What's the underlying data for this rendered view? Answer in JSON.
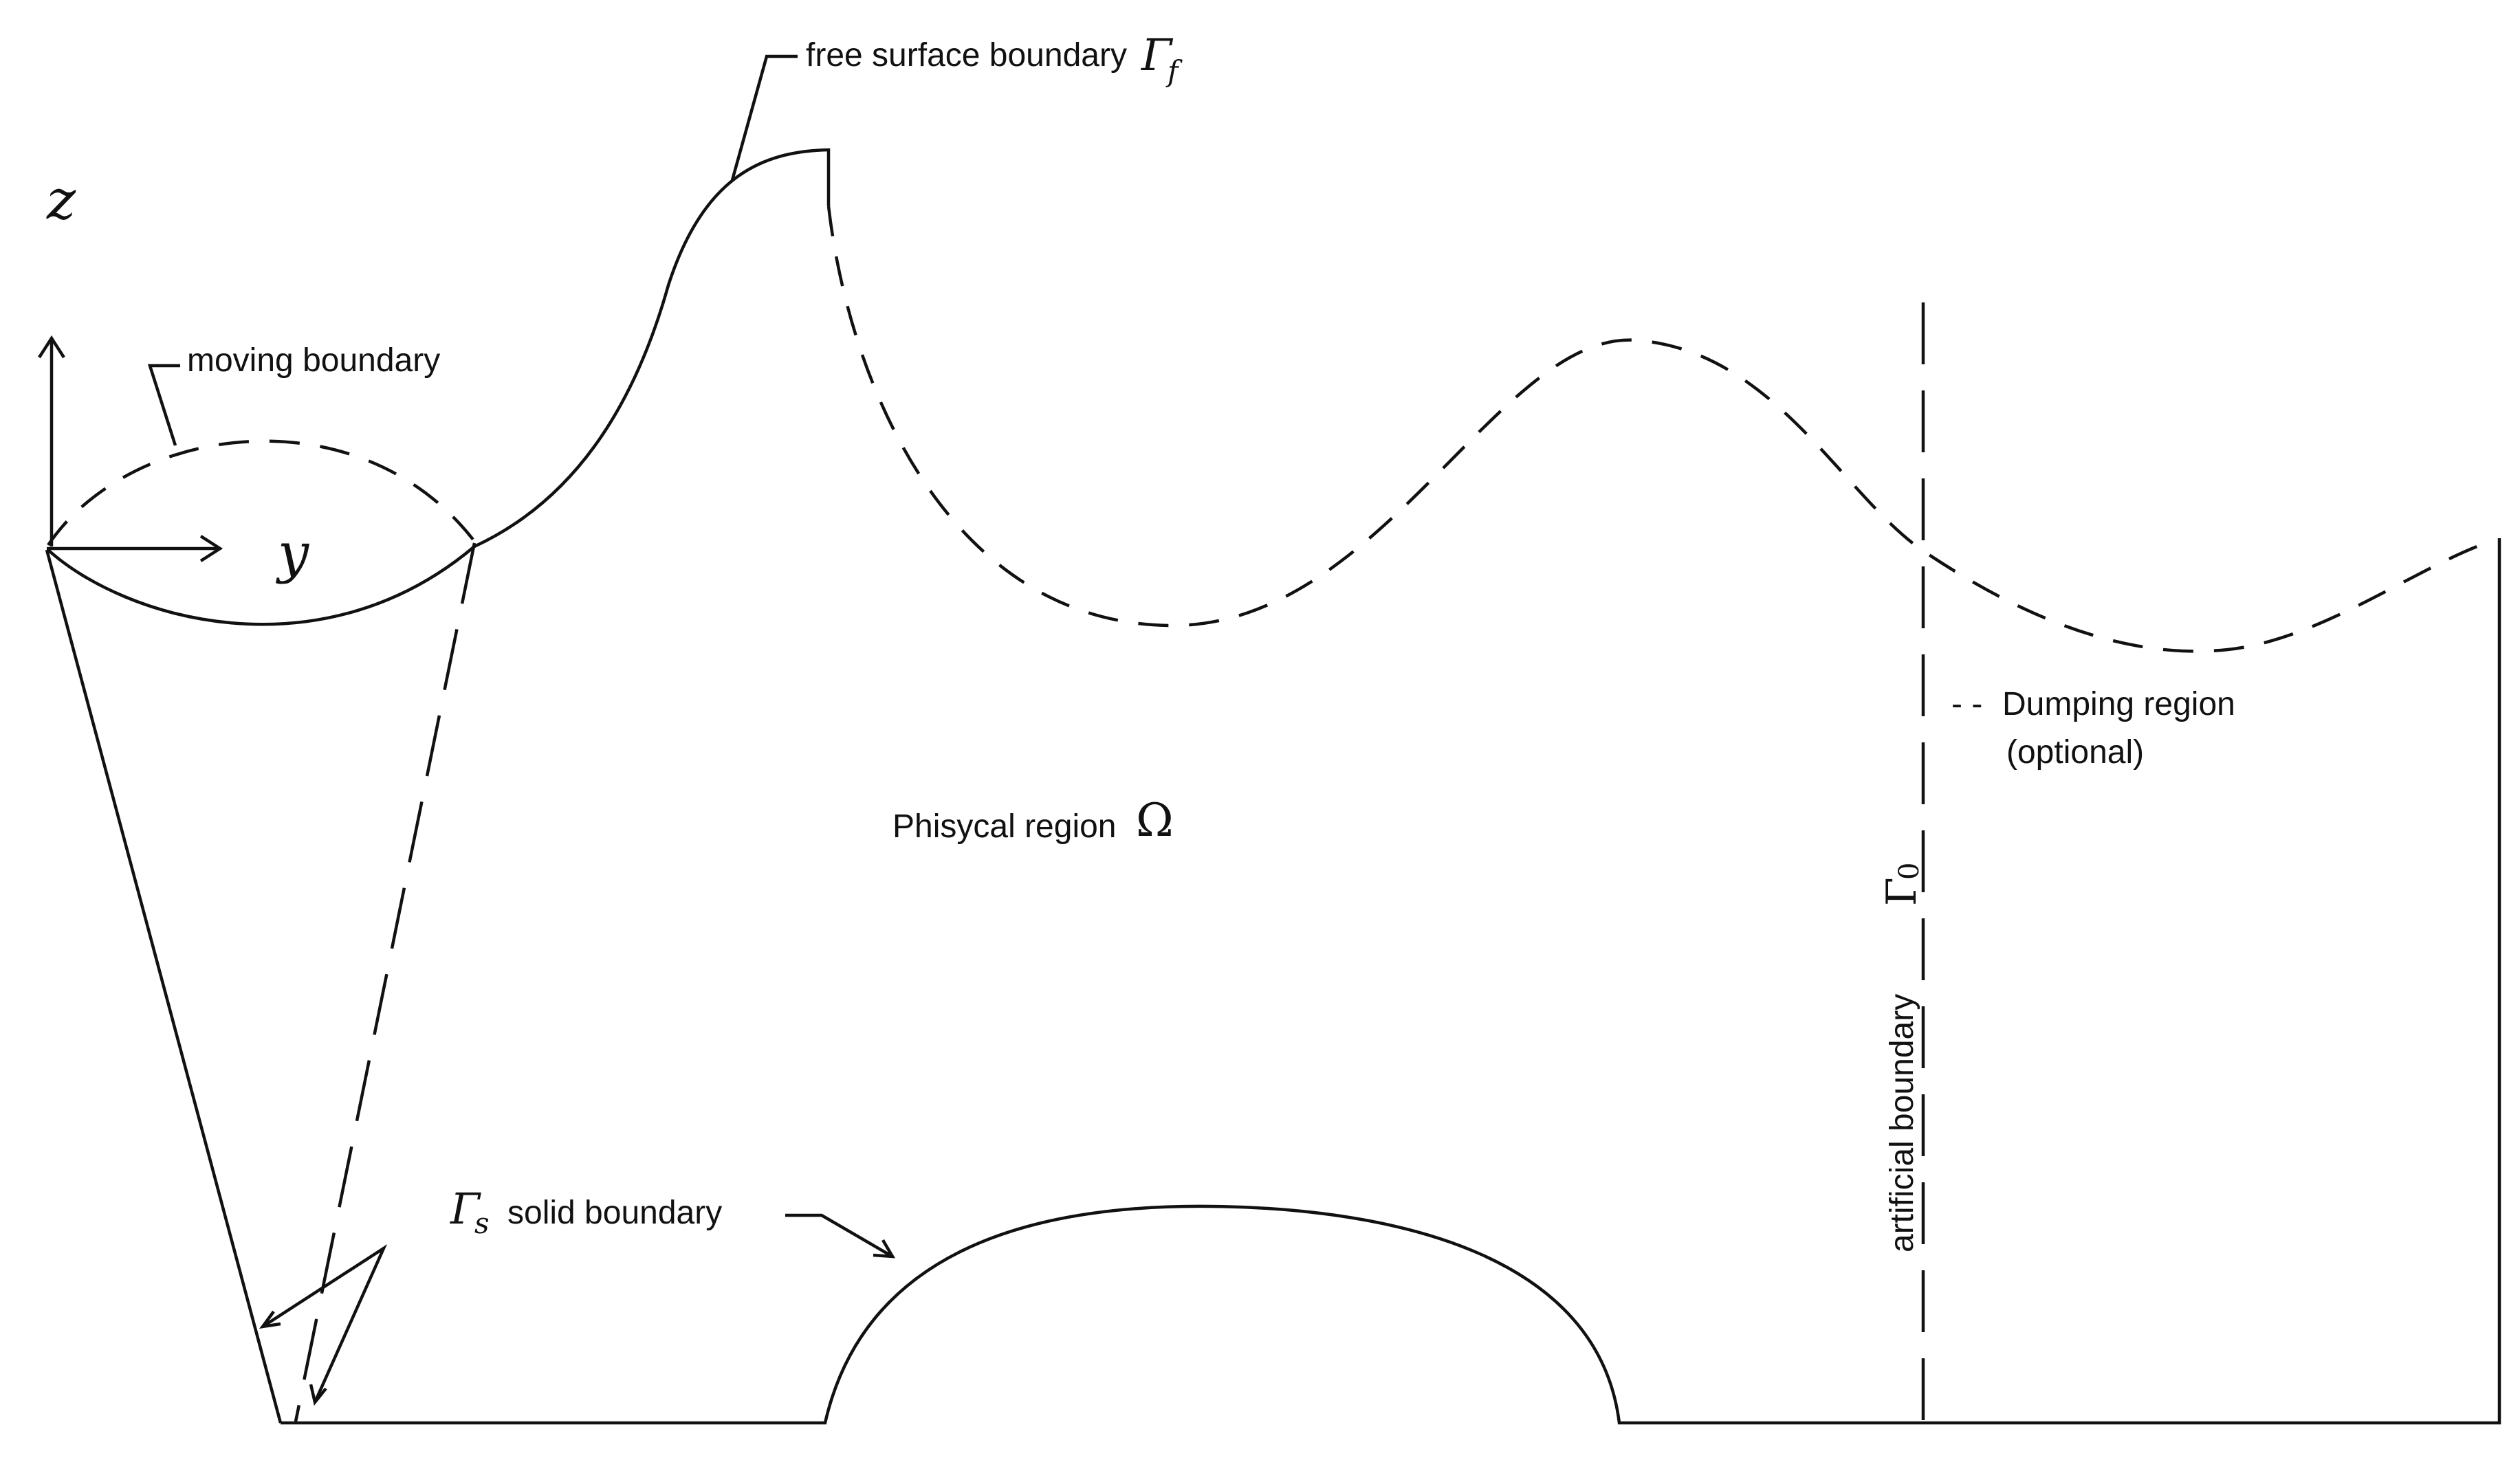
{
  "labels": {
    "axis_z": "z",
    "axis_y": "y",
    "moving_boundary": "moving boundary",
    "free_surface_boundary": "free surface boundary",
    "free_surface_symbol_main": "Γ",
    "free_surface_symbol_sub": "f",
    "physical_region": "Phisycal region",
    "physical_region_symbol": "Ω",
    "dumping_region_marker": "- -",
    "dumping_region": "Dumping region",
    "dumping_region_note": "(optional)",
    "artificial_boundary": "artificial boundary",
    "artificial_boundary_symbol_main": "Γ",
    "artificial_boundary_symbol_sub": "0",
    "solid_boundary_symbol_main": "Γ",
    "solid_boundary_symbol_sub": "s",
    "solid_boundary": "solid boundary"
  },
  "colors": {
    "ink": "#111111",
    "background": "#ffffff"
  }
}
